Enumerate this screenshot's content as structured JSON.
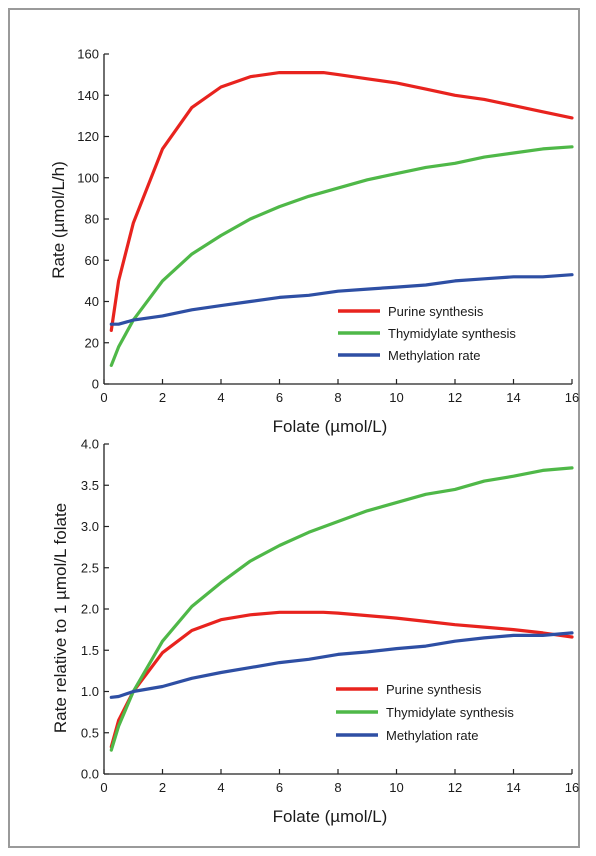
{
  "chart_data": [
    {
      "type": "line",
      "title": "",
      "xlabel": "Folate (µmol/L)",
      "ylabel": "Rate (µmol/L/h)",
      "xlim": [
        0,
        16
      ],
      "ylim": [
        0,
        160
      ],
      "xticks": [
        0,
        2,
        4,
        6,
        8,
        10,
        12,
        14,
        16
      ],
      "yticks": [
        0,
        20,
        40,
        60,
        80,
        100,
        120,
        140,
        160
      ],
      "grid": false,
      "legend_position": "bottom-right",
      "series": [
        {
          "name": "Purine synthesis",
          "color": "#e8231e",
          "x": [
            0.25,
            0.5,
            1,
            2,
            3,
            4,
            5,
            6,
            7,
            7.5,
            8,
            9,
            10,
            11,
            12,
            13,
            14,
            15,
            16
          ],
          "y": [
            26,
            50,
            78,
            114,
            134,
            144,
            149,
            151,
            151,
            151,
            150,
            148,
            146,
            143,
            140,
            138,
            135,
            132,
            129
          ]
        },
        {
          "name": "Thymidylate synthesis",
          "color": "#4fb848",
          "x": [
            0.25,
            0.5,
            1,
            2,
            3,
            4,
            5,
            6,
            7,
            8,
            9,
            10,
            11,
            12,
            13,
            14,
            15,
            16
          ],
          "y": [
            9,
            18,
            31,
            50,
            63,
            72,
            80,
            86,
            91,
            95,
            99,
            102,
            105,
            107,
            110,
            112,
            114,
            115
          ]
        },
        {
          "name": "Methylation rate",
          "color": "#2e4fa4",
          "x": [
            0.25,
            0.5,
            1,
            2,
            3,
            4,
            5,
            6,
            7,
            8,
            9,
            10,
            11,
            12,
            13,
            14,
            15,
            16
          ],
          "y": [
            29,
            29,
            31,
            33,
            36,
            38,
            40,
            42,
            43,
            45,
            46,
            47,
            48,
            50,
            51,
            52,
            52,
            53
          ]
        }
      ]
    },
    {
      "type": "line",
      "title": "",
      "xlabel": "Folate (µmol/L)",
      "ylabel": "Rate relative to 1 µmol/L folate",
      "xlim": [
        0,
        16
      ],
      "ylim": [
        0,
        4
      ],
      "xticks": [
        0,
        2,
        4,
        6,
        8,
        10,
        12,
        14,
        16
      ],
      "yticks": [
        "0.0",
        "0.5",
        "1.0",
        "1.5",
        "2.0",
        "2.5",
        "3.0",
        "3.5",
        "4.0"
      ],
      "grid": false,
      "legend_position": "bottom-right",
      "series": [
        {
          "name": "Purine synthesis",
          "color": "#e8231e",
          "x": [
            0.25,
            0.5,
            1,
            2,
            3,
            4,
            5,
            6,
            7,
            7.5,
            8,
            9,
            10,
            11,
            12,
            13,
            14,
            15,
            16
          ],
          "y": [
            0.33,
            0.65,
            1.0,
            1.47,
            1.74,
            1.87,
            1.93,
            1.96,
            1.96,
            1.96,
            1.95,
            1.92,
            1.89,
            1.85,
            1.81,
            1.78,
            1.75,
            1.71,
            1.66
          ]
        },
        {
          "name": "Thymidylate synthesis",
          "color": "#4fb848",
          "x": [
            0.25,
            0.5,
            1,
            2,
            3,
            4,
            5,
            6,
            7,
            8,
            9,
            10,
            11,
            12,
            13,
            14,
            15,
            16
          ],
          "y": [
            0.29,
            0.58,
            1.0,
            1.61,
            2.03,
            2.32,
            2.58,
            2.77,
            2.93,
            3.06,
            3.19,
            3.29,
            3.39,
            3.45,
            3.55,
            3.61,
            3.68,
            3.71
          ]
        },
        {
          "name": "Methylation rate",
          "color": "#2e4fa4",
          "x": [
            0.25,
            0.5,
            1,
            2,
            3,
            4,
            5,
            6,
            7,
            8,
            9,
            10,
            11,
            12,
            13,
            14,
            15,
            16
          ],
          "y": [
            0.93,
            0.94,
            1.0,
            1.06,
            1.16,
            1.23,
            1.29,
            1.35,
            1.39,
            1.45,
            1.48,
            1.52,
            1.55,
            1.61,
            1.65,
            1.68,
            1.68,
            1.71
          ]
        }
      ]
    }
  ]
}
